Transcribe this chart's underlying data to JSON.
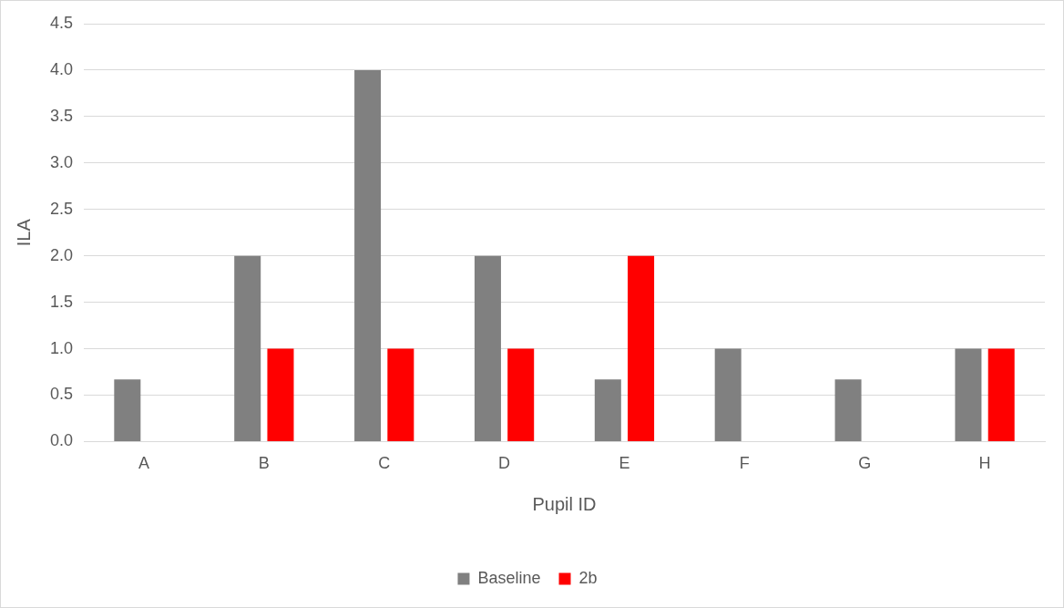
{
  "chart_data": {
    "type": "bar",
    "xlabel": "Pupil ID",
    "ylabel": "ILA",
    "categories": [
      "A",
      "B",
      "C",
      "D",
      "E",
      "F",
      "G",
      "H"
    ],
    "series": [
      {
        "name": "Baseline",
        "color": "#808080",
        "values": [
          0.67,
          2,
          4,
          2,
          0.67,
          1,
          0.67,
          1
        ]
      },
      {
        "name": "2b",
        "color": "#ff0000",
        "values": [
          0,
          1,
          1,
          1,
          2,
          0,
          0,
          1
        ]
      }
    ],
    "ylim": [
      0,
      4.5
    ],
    "yticks": [
      {
        "value": 0,
        "label": "0.0"
      },
      {
        "value": 0.5,
        "label": "0.5"
      },
      {
        "value": 1,
        "label": "1.0"
      },
      {
        "value": 1.5,
        "label": "1.5"
      },
      {
        "value": 2,
        "label": "2.0"
      },
      {
        "value": 2.5,
        "label": "2.5"
      },
      {
        "value": 3,
        "label": "3.0"
      },
      {
        "value": 3.5,
        "label": "3.5"
      },
      {
        "value": 4,
        "label": "4.0"
      },
      {
        "value": 4.5,
        "label": "4.5"
      }
    ],
    "grid": "y",
    "legend": "bottom"
  }
}
